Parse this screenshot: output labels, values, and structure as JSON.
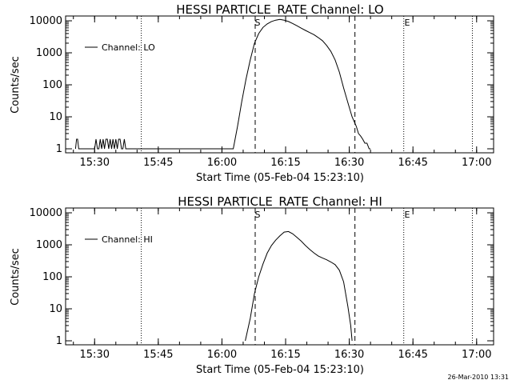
{
  "chart_data": [
    {
      "type": "line",
      "title": "HESSI PARTICLE_RATE Channel: LO",
      "xlabel": "Start Time (05-Feb-04 15:23:10)",
      "ylabel": "Counts/sec",
      "yscale": "log",
      "xlim": [
        "15:23:10",
        "17:04:00"
      ],
      "ylim": [
        1,
        10000
      ],
      "xticks": [
        "15:30",
        "15:45",
        "16:00",
        "16:15",
        "16:30",
        "16:45",
        "17:00"
      ],
      "yticks": [
        "1",
        "10",
        "100",
        "1000",
        "10000"
      ],
      "legend": {
        "position": "top-left"
      },
      "series": [
        {
          "name": "Channel: LO",
          "x": [
            "15:25:30",
            "15:25:45",
            "15:26:00",
            "15:26:15",
            "15:30:00",
            "15:30:20",
            "15:30:40",
            "15:31:00",
            "15:31:20",
            "15:31:40",
            "15:32:00",
            "15:32:20",
            "15:32:40",
            "15:33:00",
            "15:33:20",
            "15:33:40",
            "15:34:00",
            "15:34:20",
            "15:34:40",
            "15:35:00",
            "15:35:20",
            "15:35:40",
            "15:36:00",
            "15:36:20",
            "15:36:40",
            "15:37:00",
            "15:37:20",
            "15:37:40",
            "16:02:40",
            "16:03:40",
            "16:04:40",
            "16:05:40",
            "16:06:40",
            "16:07:40",
            "16:08:40",
            "16:09:40",
            "16:10:40",
            "16:11:40",
            "16:12:40",
            "16:13:40",
            "16:14:40",
            "16:15:40",
            "16:16:40",
            "16:17:40",
            "16:18:40",
            "16:19:40",
            "16:20:40",
            "16:21:40",
            "16:22:40",
            "16:23:40",
            "16:24:40",
            "16:25:40",
            "16:26:40",
            "16:27:40",
            "16:28:40",
            "16:29:40",
            "16:30:40",
            "16:31:40",
            "16:32:10",
            "16:32:40",
            "16:33:10",
            "16:33:40",
            "16:34:10",
            "16:34:40",
            "16:35:00"
          ],
          "values": [
            1,
            2,
            2,
            1,
            1,
            2,
            1,
            1,
            2,
            1,
            2,
            1,
            2,
            2,
            1,
            2,
            1,
            2,
            1,
            2,
            1,
            2,
            2,
            1,
            1,
            2,
            1,
            1,
            1,
            5,
            30,
            150,
            600,
            2000,
            4000,
            6200,
            8000,
            9500,
            10500,
            11000,
            10500,
            9500,
            8200,
            7000,
            5900,
            5000,
            4300,
            3700,
            3000,
            2400,
            1700,
            1100,
            600,
            250,
            80,
            28,
            10,
            5,
            3,
            2.5,
            2,
            1.5,
            1.5,
            1,
            1
          ]
        }
      ],
      "annotations": [
        "S",
        "E"
      ]
    },
    {
      "type": "line",
      "title": "HESSI PARTICLE_RATE Channel: HI",
      "xlabel": "Start Time (05-Feb-04 15:23:10)",
      "ylabel": "Counts/sec",
      "yscale": "log",
      "xlim": [
        "15:23:10",
        "17:04:00"
      ],
      "ylim": [
        1,
        10000
      ],
      "xticks": [
        "15:30",
        "15:45",
        "16:00",
        "16:15",
        "16:30",
        "16:45",
        "17:00"
      ],
      "yticks": [
        "1",
        "10",
        "100",
        "1000",
        "10000"
      ],
      "legend": {
        "position": "top-left"
      },
      "series": [
        {
          "name": "Channel: HI",
          "x": [
            "16:05:30",
            "16:06:40",
            "16:07:40",
            "16:08:40",
            "16:09:40",
            "16:10:40",
            "16:11:40",
            "16:12:40",
            "16:13:40",
            "16:14:40",
            "16:15:40",
            "16:16:40",
            "16:17:40",
            "16:18:40",
            "16:19:40",
            "16:20:40",
            "16:21:40",
            "16:22:40",
            "16:23:40",
            "16:24:40",
            "16:25:40",
            "16:26:40",
            "16:27:40",
            "16:28:40",
            "16:29:40",
            "16:30:20",
            "16:30:40"
          ],
          "values": [
            1,
            5,
            30,
            100,
            250,
            550,
            950,
            1400,
            1900,
            2500,
            2600,
            2200,
            1700,
            1300,
            950,
            720,
            560,
            450,
            390,
            340,
            290,
            240,
            160,
            70,
            12,
            3,
            1
          ]
        }
      ],
      "annotations": [
        "S",
        "E"
      ]
    }
  ],
  "footer": {
    "timestamp": "26-Mar-2010 13:31"
  }
}
